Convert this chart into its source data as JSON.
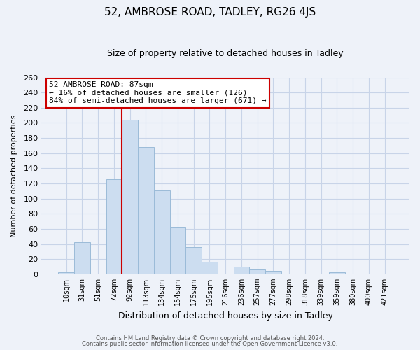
{
  "title": "52, AMBROSE ROAD, TADLEY, RG26 4JS",
  "subtitle": "Size of property relative to detached houses in Tadley",
  "xlabel": "Distribution of detached houses by size in Tadley",
  "ylabel": "Number of detached properties",
  "bar_labels": [
    "10sqm",
    "31sqm",
    "51sqm",
    "72sqm",
    "92sqm",
    "113sqm",
    "134sqm",
    "154sqm",
    "175sqm",
    "195sqm",
    "216sqm",
    "236sqm",
    "257sqm",
    "277sqm",
    "298sqm",
    "318sqm",
    "339sqm",
    "359sqm",
    "380sqm",
    "400sqm",
    "421sqm"
  ],
  "bar_values": [
    3,
    42,
    0,
    126,
    204,
    168,
    111,
    63,
    36,
    16,
    0,
    10,
    6,
    4,
    0,
    0,
    0,
    3,
    0,
    0,
    0
  ],
  "bar_color": "#ccddf0",
  "bar_edge_color": "#9bbbd8",
  "vline_color": "#cc0000",
  "ylim": [
    0,
    260
  ],
  "yticks": [
    0,
    20,
    40,
    60,
    80,
    100,
    120,
    140,
    160,
    180,
    200,
    220,
    240,
    260
  ],
  "annotation_title": "52 AMBROSE ROAD: 87sqm",
  "annotation_line1": "← 16% of detached houses are smaller (126)",
  "annotation_line2": "84% of semi-detached houses are larger (671) →",
  "annotation_box_facecolor": "white",
  "annotation_box_edgecolor": "#cc0000",
  "footer1": "Contains HM Land Registry data © Crown copyright and database right 2024.",
  "footer2": "Contains public sector information licensed under the Open Government Licence v3.0.",
  "background_color": "#eef2f9",
  "grid_color": "#c8d4e8",
  "title_fontsize": 11,
  "subtitle_fontsize": 9
}
